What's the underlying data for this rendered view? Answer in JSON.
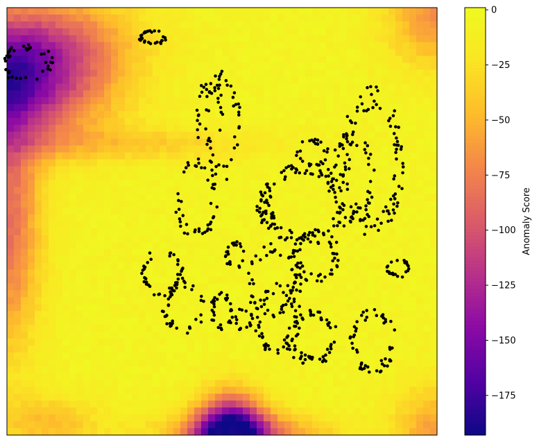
{
  "chart_data": {
    "type": "heatmap",
    "title": "",
    "xlabel": "",
    "ylabel": "",
    "x_ticks": "none",
    "y_ticks": "none",
    "grid": false,
    "colormap": "plasma",
    "colorbar": {
      "label": "Anomaly Score",
      "vmin": -193,
      "vmax": 1,
      "ticks": [
        {
          "value": 0,
          "label": "0"
        },
        {
          "value": -25,
          "label": "−25"
        },
        {
          "value": -50,
          "label": "−50"
        },
        {
          "value": -75,
          "label": "−75"
        },
        {
          "value": -100,
          "label": "−100"
        },
        {
          "value": -125,
          "label": "−125"
        },
        {
          "value": -150,
          "label": "−150"
        },
        {
          "value": -175,
          "label": "−175"
        }
      ]
    },
    "low_score_regions": [
      {
        "location": "top-left",
        "min_score": -170
      },
      {
        "location": "bottom-center",
        "min_score": -190
      },
      {
        "location": "far-left bands",
        "min_score": -120
      }
    ],
    "scatter": {
      "color": "#000000",
      "clusters": [
        {
          "cx": 0.045,
          "cy": 0.87,
          "rx": 0.06,
          "ry": 0.04,
          "n": 38
        },
        {
          "cx": 0.34,
          "cy": 0.93,
          "rx": 0.03,
          "ry": 0.015,
          "n": 30
        },
        {
          "cx": 0.5,
          "cy": 0.72,
          "rx": 0.04,
          "ry": 0.12,
          "n": 46
        },
        {
          "cx": 0.47,
          "cy": 0.75,
          "rx": 0.03,
          "ry": 0.08,
          "n": 24
        },
        {
          "cx": 0.71,
          "cy": 0.66,
          "rx": 0.035,
          "ry": 0.03,
          "n": 26
        },
        {
          "cx": 0.44,
          "cy": 0.55,
          "rx": 0.045,
          "ry": 0.09,
          "n": 44
        },
        {
          "cx": 0.36,
          "cy": 0.38,
          "rx": 0.045,
          "ry": 0.06,
          "n": 40
        },
        {
          "cx": 0.41,
          "cy": 0.3,
          "rx": 0.045,
          "ry": 0.06,
          "n": 40
        },
        {
          "cx": 0.53,
          "cy": 0.42,
          "rx": 0.02,
          "ry": 0.03,
          "n": 22
        },
        {
          "cx": 0.62,
          "cy": 0.36,
          "rx": 0.06,
          "ry": 0.08,
          "n": 60
        },
        {
          "cx": 0.72,
          "cy": 0.42,
          "rx": 0.05,
          "ry": 0.06,
          "n": 48
        },
        {
          "cx": 0.69,
          "cy": 0.54,
          "rx": 0.1,
          "ry": 0.09,
          "n": 110
        },
        {
          "cx": 0.85,
          "cy": 0.64,
          "rx": 0.07,
          "ry": 0.16,
          "n": 90
        },
        {
          "cx": 0.8,
          "cy": 0.6,
          "rx": 0.05,
          "ry": 0.1,
          "n": 60
        },
        {
          "cx": 0.91,
          "cy": 0.39,
          "rx": 0.025,
          "ry": 0.02,
          "n": 22
        },
        {
          "cx": 0.85,
          "cy": 0.22,
          "rx": 0.05,
          "ry": 0.07,
          "n": 50
        },
        {
          "cx": 0.63,
          "cy": 0.27,
          "rx": 0.05,
          "ry": 0.08,
          "n": 50
        },
        {
          "cx": 0.71,
          "cy": 0.23,
          "rx": 0.06,
          "ry": 0.06,
          "n": 60
        },
        {
          "cx": 0.5,
          "cy": 0.29,
          "rx": 0.025,
          "ry": 0.04,
          "n": 30
        },
        {
          "cx": 0.55,
          "cy": 0.27,
          "rx": 0.02,
          "ry": 0.025,
          "n": 18
        }
      ]
    }
  }
}
